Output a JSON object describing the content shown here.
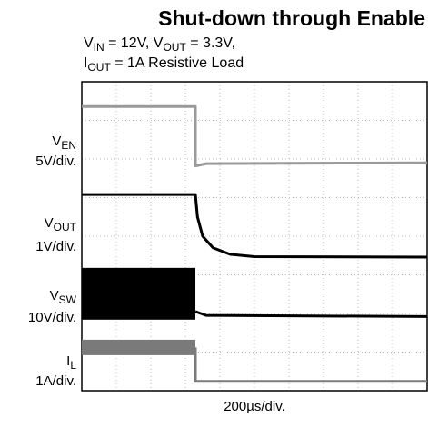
{
  "chart_data": {
    "type": "line",
    "title": "Shut-down through Enable",
    "subtitle": [
      [
        "V",
        "IN",
        " = 12V, V",
        "OUT",
        " = 3.3V,"
      ],
      [
        "I",
        "OUT",
        " = 1A Resistive Load"
      ]
    ],
    "xlabel": "200µs/div.",
    "xlim": [
      0,
      10
    ],
    "ylim": [
      0,
      8
    ],
    "xticks": [
      0,
      1,
      2,
      3,
      4,
      5,
      6,
      7,
      8,
      9,
      10
    ],
    "yticks": [
      0,
      1,
      2,
      3,
      4,
      5,
      6,
      7,
      8
    ],
    "grid": true,
    "series": [
      {
        "name": [
          "V",
          "EN"
        ],
        "scale": "5V/div.",
        "color": "#9a9a9a",
        "x": [
          0,
          3.29,
          3.29,
          3.6,
          10
        ],
        "values": [
          7.36,
          7.36,
          5.82,
          5.88,
          5.9
        ]
      },
      {
        "name": [
          "V",
          "OUT"
        ],
        "scale": "1V/div.",
        "color": "#000000",
        "x": [
          0,
          3.29,
          3.35,
          3.5,
          3.8,
          4.3,
          5,
          10
        ],
        "values": [
          5.08,
          5.08,
          4.5,
          4.0,
          3.7,
          3.53,
          3.47,
          3.46
        ]
      },
      {
        "name": [
          "V",
          "SW"
        ],
        "scale": "10V/div.",
        "color": "#000000",
        "band": {
          "x": [
            0,
            3.29
          ],
          "high": 3.18,
          "low": 1.84
        },
        "x": [
          3.29,
          3.6,
          10
        ],
        "values": [
          2.05,
          1.95,
          1.92
        ]
      },
      {
        "name": [
          "I",
          "L"
        ],
        "scale": "1A/div.",
        "color": "#7a7a7a",
        "band": {
          "x": [
            0,
            3.29
          ],
          "high": 1.32,
          "low": 0.92
        },
        "x": [
          3.29,
          3.29,
          10
        ],
        "values": [
          1.12,
          0.24,
          0.24
        ]
      }
    ]
  }
}
